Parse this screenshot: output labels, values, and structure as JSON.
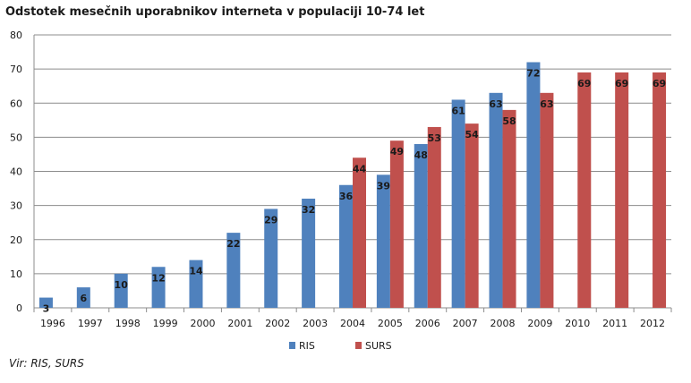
{
  "chart_data": {
    "type": "bar",
    "title": "Odstotek mesečnih uporabnikov interneta v populaciji 10-74 let",
    "source": "Vir: RIS, SURS",
    "categories": [
      "1996",
      "1997",
      "1998",
      "1999",
      "2000",
      "2001",
      "2002",
      "2003",
      "2004",
      "2005",
      "2006",
      "2007",
      "2008",
      "2009",
      "2010",
      "2011",
      "2012"
    ],
    "series": [
      {
        "name": "RIS",
        "color": "#4f81bd",
        "values": [
          3,
          6,
          10,
          12,
          14,
          22,
          29,
          32,
          36,
          39,
          48,
          61,
          63,
          72,
          null,
          null,
          null
        ]
      },
      {
        "name": "SURS",
        "color": "#c0504d",
        "values": [
          null,
          null,
          null,
          null,
          null,
          null,
          null,
          null,
          44,
          49,
          53,
          54,
          58,
          63,
          69,
          69,
          69
        ]
      }
    ],
    "ylim": [
      0,
      80
    ],
    "yticks": [
      0,
      10,
      20,
      30,
      40,
      50,
      60,
      70,
      80
    ],
    "grid": true,
    "legend": "bottom"
  }
}
